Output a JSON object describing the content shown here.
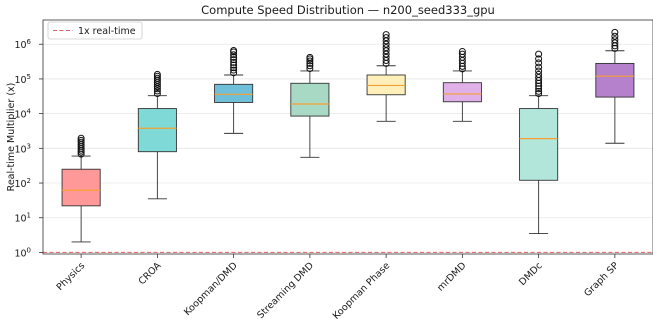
{
  "chart_data": {
    "type": "box",
    "title": "Compute Speed Distribution — n200_seed333_gpu",
    "xlabel": "",
    "ylabel": "Real-time Multiplier (x)",
    "yscale": "log",
    "ylim": [
      0.9,
      5000000
    ],
    "yticks": [
      1,
      10,
      100,
      1000,
      10000,
      100000,
      1000000
    ],
    "ytick_labels": [
      {
        "base": "10",
        "exp": "0"
      },
      {
        "base": "10",
        "exp": "1"
      },
      {
        "base": "10",
        "exp": "2"
      },
      {
        "base": "10",
        "exp": "3"
      },
      {
        "base": "10",
        "exp": "4"
      },
      {
        "base": "10",
        "exp": "5"
      },
      {
        "base": "10",
        "exp": "6"
      }
    ],
    "grid": "horizontal",
    "reference_line": {
      "y": 1,
      "label": "1x real-time",
      "color": "#e06060"
    },
    "legend": {
      "placement": "top-left",
      "entries": [
        "1x real-time"
      ]
    },
    "categories": [
      "Physics",
      "CROA",
      "Koopman/DMD",
      "Streaming DMD",
      "Koopman Phase",
      "mrDMD",
      "DMDc",
      "Graph SP"
    ],
    "boxes": [
      {
        "name": "Physics",
        "color": "#ff9999",
        "whisker_low": 2,
        "q1": 22,
        "median": 62,
        "q3": 250,
        "whisker_high": 600,
        "outliers": [
          680,
          780,
          880,
          1000,
          1150,
          1300,
          1500,
          1700,
          1950
        ]
      },
      {
        "name": "CROA",
        "color": "#7fd9d6",
        "whisker_low": 35,
        "q1": 800,
        "median": 3800,
        "q3": 14000,
        "whisker_high": 33000,
        "outliers": [
          38000,
          45000,
          52000,
          60000,
          70000,
          80000,
          92000,
          105000,
          120000,
          135000
        ]
      },
      {
        "name": "Koopman/DMD",
        "color": "#70bfd9",
        "whisker_low": 2700,
        "q1": 21000,
        "median": 36000,
        "q3": 70000,
        "whisker_high": 130000,
        "outliers": [
          150000,
          180000,
          210000,
          250000,
          300000,
          360000,
          420000,
          500000,
          600000,
          660000
        ]
      },
      {
        "name": "Streaming DMD",
        "color": "#a8d9c4",
        "whisker_low": 550,
        "q1": 8500,
        "median": 19000,
        "q3": 75000,
        "whisker_high": 170000,
        "outliers": [
          200000,
          240000,
          280000,
          330000,
          380000,
          420000
        ]
      },
      {
        "name": "Koopman Phase",
        "color": "#fff0bb",
        "whisker_low": 6000,
        "q1": 35000,
        "median": 65000,
        "q3": 130000,
        "whisker_high": 240000,
        "outliers": [
          280000,
          340000,
          420000,
          520000,
          650000,
          800000,
          1000000,
          1250000,
          1550000,
          1900000
        ]
      },
      {
        "name": "mrDMD",
        "color": "#e0b0e8",
        "whisker_low": 6000,
        "q1": 22000,
        "median": 37000,
        "q3": 78000,
        "whisker_high": 170000,
        "outliers": [
          195000,
          230000,
          280000,
          340000,
          420000,
          520000,
          620000
        ]
      },
      {
        "name": "DMDc",
        "color": "#b2e6da",
        "whisker_low": 3.5,
        "q1": 120,
        "median": 1900,
        "q3": 14000,
        "whisker_high": 33000,
        "outliers": [
          38000,
          44000,
          52000,
          62000,
          75000,
          90000,
          110000,
          135000,
          170000,
          220000,
          290000,
          380000,
          520000
        ]
      },
      {
        "name": "Graph SP",
        "color": "#b580cc",
        "whisker_low": 1400,
        "q1": 30000,
        "median": 120000,
        "q3": 280000,
        "whisker_high": 650000,
        "outliers": [
          760000,
          900000,
          1100000,
          1350000,
          1700000,
          2200000
        ]
      }
    ],
    "median_color": "#f5a030"
  }
}
